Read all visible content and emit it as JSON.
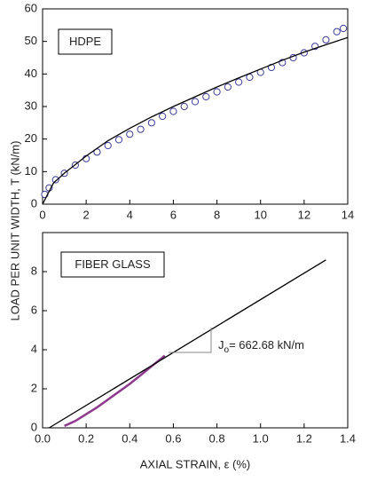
{
  "ylabel": "LOAD PER UNIT WIDTH, T (kN/m)",
  "xlabel": "AXIAL STRAIN, ε (%)",
  "chart_data": [
    {
      "type": "scatter",
      "label": "HDPE",
      "xlim": [
        0,
        14
      ],
      "xticks": [
        0,
        2,
        4,
        6,
        8,
        10,
        12,
        14
      ],
      "ylim": [
        0,
        60
      ],
      "yticks": [
        0,
        10,
        20,
        30,
        40,
        50,
        60
      ],
      "series": [
        {
          "style": "markers",
          "color": "#3a3a9a",
          "x": [
            0.1,
            0.3,
            0.6,
            1,
            1.5,
            2,
            2.5,
            3,
            3.5,
            4,
            4.5,
            5,
            5.5,
            6,
            6.5,
            7,
            7.5,
            8,
            8.5,
            9,
            9.5,
            10,
            10.5,
            11,
            11.5,
            12,
            12.5,
            13,
            13.5,
            13.8
          ],
          "values": [
            3,
            5,
            7.5,
            9.5,
            12,
            14,
            16,
            18,
            19.8,
            21.5,
            23,
            25,
            27,
            28.5,
            30,
            31.5,
            33,
            34.5,
            36,
            37.5,
            39,
            40.5,
            42,
            43.5,
            45,
            46.5,
            48.5,
            50.5,
            53,
            54
          ]
        },
        {
          "style": "line",
          "color": "#000000",
          "x": [
            0,
            0.5,
            1,
            2,
            3,
            4,
            5,
            6,
            7,
            8,
            9,
            10,
            11,
            12,
            13,
            14
          ],
          "values": [
            0,
            6.5,
            9.5,
            14.8,
            19.5,
            23.3,
            26.8,
            30,
            33,
            36,
            38.8,
            41.5,
            44.2,
            46.7,
            49,
            51.2
          ]
        }
      ]
    },
    {
      "type": "scatter",
      "label": "FIBER GLASS",
      "xlim": [
        0,
        1.4
      ],
      "xticks": [
        {
          "value": 0,
          "label": "0.0"
        },
        0.2,
        0.4,
        0.6,
        0.8,
        {
          "value": 1,
          "label": "1.0"
        },
        1.2,
        1.4
      ],
      "ylim": [
        0,
        10
      ],
      "yticks": [
        0,
        2,
        4,
        6,
        8
      ],
      "annotation": {
        "symbol": "J",
        "subscript": "o",
        "text": "= 662.68 kN/m"
      },
      "series": [
        {
          "style": "line",
          "width": 2.5,
          "color": "#8e3a8e",
          "x": [
            0.1,
            0.15,
            0.2,
            0.25,
            0.3,
            0.35,
            0.4,
            0.45,
            0.5,
            0.55,
            0.56
          ],
          "values": [
            0.1,
            0.35,
            0.7,
            1.05,
            1.45,
            1.85,
            2.25,
            2.7,
            3.15,
            3.6,
            3.7
          ]
        },
        {
          "style": "line",
          "color": "#000000",
          "x": [
            0.03,
            1.3
          ],
          "values": [
            0,
            8.6
          ]
        }
      ]
    }
  ]
}
